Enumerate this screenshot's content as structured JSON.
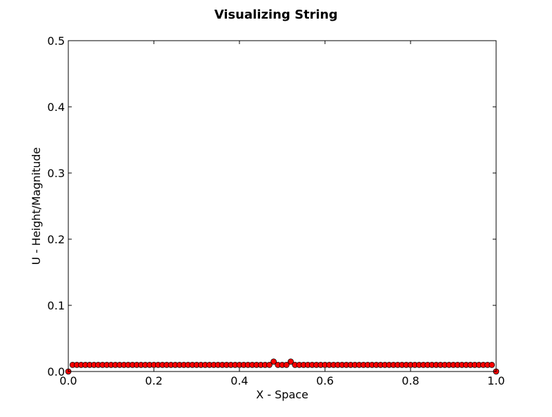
{
  "chart_data": {
    "type": "scatter",
    "title": "Visualizing String",
    "xlabel": "X - Space",
    "ylabel": "U - Height/Magnitude",
    "xlim": [
      0,
      1
    ],
    "ylim": [
      0,
      0.5
    ],
    "xticks": [
      0.0,
      0.2,
      0.4,
      0.6,
      0.8,
      1.0
    ],
    "xtick_labels": [
      "0.0",
      "0.2",
      "0.4",
      "0.6",
      "0.8",
      "1.0"
    ],
    "yticks": [
      0.0,
      0.1,
      0.2,
      0.3,
      0.4,
      0.5
    ],
    "ytick_labels": [
      "0.0",
      "0.1",
      "0.2",
      "0.3",
      "0.4",
      "0.5"
    ],
    "grid": false,
    "marker": "circle",
    "marker_color": "#ff0000",
    "marker_edge_color": "#000000",
    "series": [
      {
        "x": [
          0.0,
          0.01,
          0.02,
          0.03,
          0.04,
          0.05,
          0.06,
          0.07,
          0.08,
          0.09,
          0.1,
          0.11,
          0.12,
          0.13,
          0.14,
          0.15,
          0.16,
          0.17,
          0.18,
          0.19,
          0.2,
          0.21,
          0.22,
          0.23,
          0.24,
          0.25,
          0.26,
          0.27,
          0.28,
          0.29,
          0.3,
          0.31,
          0.32,
          0.33,
          0.34,
          0.35,
          0.36,
          0.37,
          0.38,
          0.39,
          0.4,
          0.41,
          0.42,
          0.43,
          0.44,
          0.45,
          0.46,
          0.47,
          0.48,
          0.49,
          0.5,
          0.51,
          0.52,
          0.53,
          0.54,
          0.55,
          0.56,
          0.57,
          0.58,
          0.59,
          0.6,
          0.61,
          0.62,
          0.63,
          0.64,
          0.65,
          0.66,
          0.67,
          0.68,
          0.69,
          0.7,
          0.71,
          0.72,
          0.73,
          0.74,
          0.75,
          0.76,
          0.77,
          0.78,
          0.79,
          0.8,
          0.81,
          0.82,
          0.83,
          0.84,
          0.85,
          0.86,
          0.87,
          0.88,
          0.89,
          0.9,
          0.91,
          0.92,
          0.93,
          0.94,
          0.95,
          0.96,
          0.97,
          0.98,
          0.99,
          1.0
        ],
        "y": [
          0.0,
          0.01,
          0.01,
          0.01,
          0.01,
          0.01,
          0.01,
          0.01,
          0.01,
          0.01,
          0.01,
          0.01,
          0.01,
          0.01,
          0.01,
          0.01,
          0.01,
          0.01,
          0.01,
          0.01,
          0.01,
          0.01,
          0.01,
          0.01,
          0.01,
          0.01,
          0.01,
          0.01,
          0.01,
          0.01,
          0.01,
          0.01,
          0.01,
          0.01,
          0.01,
          0.01,
          0.01,
          0.01,
          0.01,
          0.01,
          0.01,
          0.01,
          0.01,
          0.01,
          0.01,
          0.01,
          0.01,
          0.01,
          0.015,
          0.01,
          0.01,
          0.01,
          0.015,
          0.01,
          0.01,
          0.01,
          0.01,
          0.01,
          0.01,
          0.01,
          0.01,
          0.01,
          0.01,
          0.01,
          0.01,
          0.01,
          0.01,
          0.01,
          0.01,
          0.01,
          0.01,
          0.01,
          0.01,
          0.01,
          0.01,
          0.01,
          0.01,
          0.01,
          0.01,
          0.01,
          0.01,
          0.01,
          0.01,
          0.01,
          0.01,
          0.01,
          0.01,
          0.01,
          0.01,
          0.01,
          0.01,
          0.01,
          0.01,
          0.01,
          0.01,
          0.01,
          0.01,
          0.01,
          0.01,
          0.01,
          0.0
        ]
      }
    ]
  }
}
